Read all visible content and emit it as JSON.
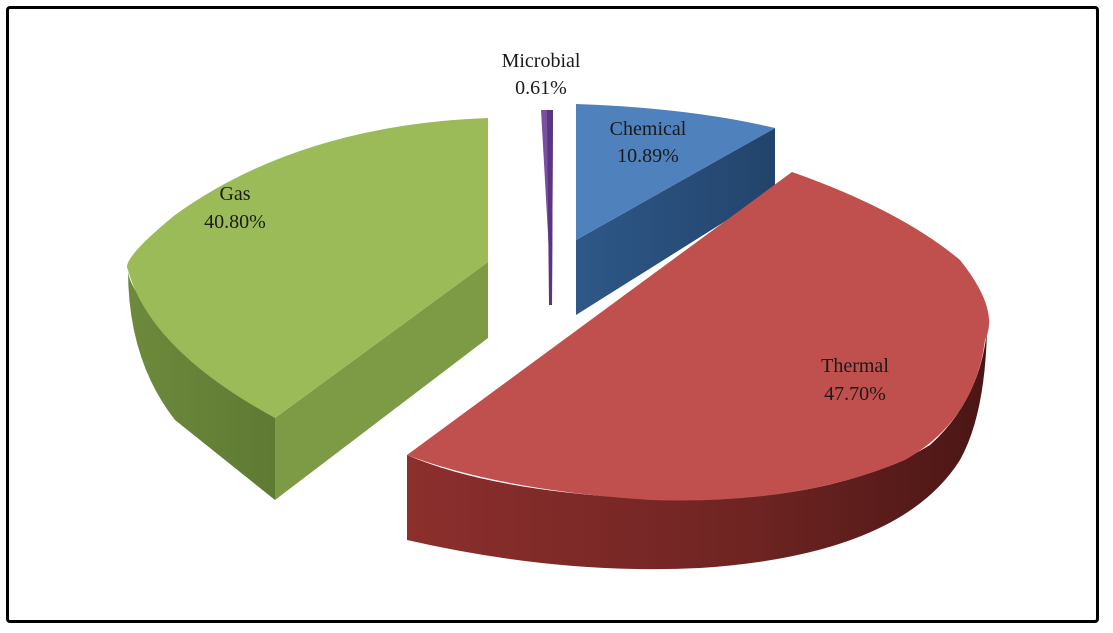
{
  "chart_data": {
    "type": "pie",
    "style": "3d-exploded",
    "slices": [
      {
        "name": "Microbial",
        "value": 0.61,
        "label": "0.61%",
        "color": "#7a4fa3"
      },
      {
        "name": "Chemical",
        "value": 10.89,
        "label": "10.89%",
        "color": "#4f81bd"
      },
      {
        "name": "Thermal",
        "value": 47.7,
        "label": "47.70%",
        "color": "#c0504d"
      },
      {
        "name": "Gas",
        "value": 40.8,
        "label": "40.80%",
        "color": "#9bbb59"
      }
    ]
  }
}
